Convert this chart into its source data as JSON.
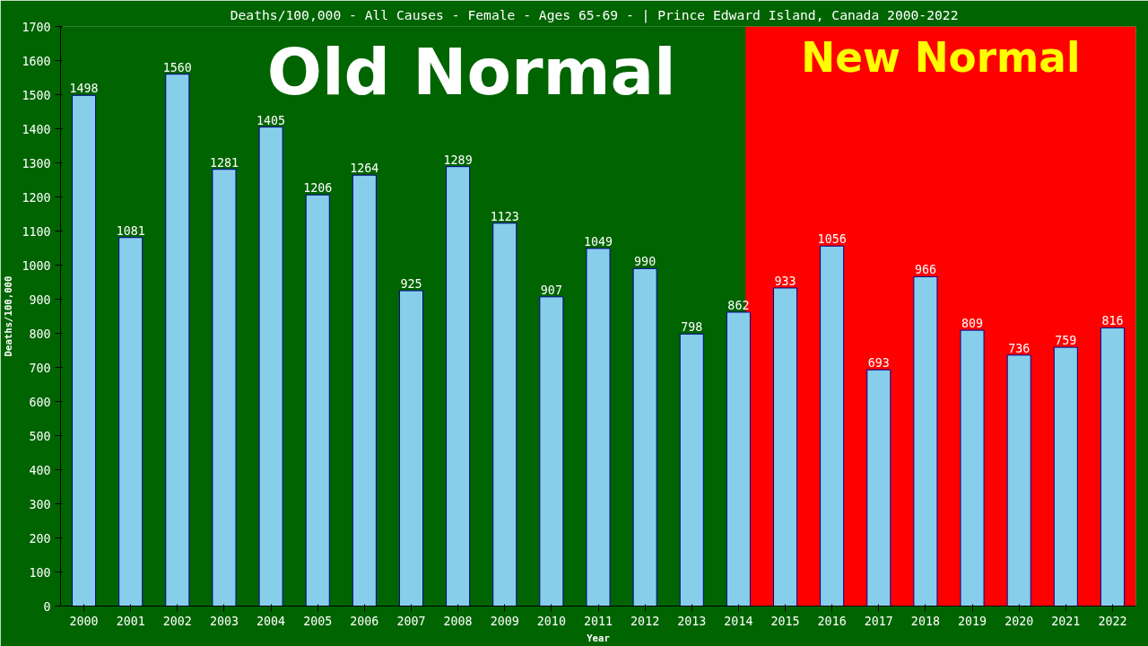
{
  "chart_data": {
    "type": "bar",
    "title": "Deaths/100,000 - All Causes - Female - Ages 65-69 -  | Prince Edward Island, Canada 2000-2022",
    "xlabel": "Year",
    "ylabel": "Deaths/100,000",
    "x": [
      2000,
      2001,
      2002,
      2003,
      2004,
      2005,
      2006,
      2007,
      2008,
      2009,
      2010,
      2011,
      2012,
      2013,
      2014,
      2015,
      2016,
      2017,
      2018,
      2019,
      2020,
      2021,
      2022
    ],
    "values": [
      1498,
      1081,
      1560,
      1281,
      1405,
      1206,
      1264,
      925,
      1289,
      1123,
      907,
      1049,
      990,
      798,
      862,
      933,
      1056,
      693,
      966,
      809,
      736,
      759,
      816
    ],
    "color": "#87ceeb",
    "xlim": [
      1999.5,
      2022.5
    ],
    "xticks": [
      2000,
      2001,
      2002,
      2003,
      2004,
      2005,
      2006,
      2007,
      2008,
      2009,
      2010,
      2011,
      2012,
      2013,
      2014,
      2015,
      2016,
      2017,
      2018,
      2019,
      2020,
      2021,
      2022
    ],
    "ylim": [
      0,
      1700
    ],
    "yticks": [
      0,
      100,
      200,
      300,
      400,
      500,
      600,
      700,
      800,
      900,
      1000,
      1100,
      1200,
      1300,
      1400,
      1500,
      1600,
      1700
    ],
    "bands": [
      {
        "axis": "x",
        "from": 1999.5,
        "to": 2014.15,
        "label": "Old Normal",
        "color": "#006400"
      },
      {
        "axis": "x",
        "from": 2014.15,
        "to": 2022.5,
        "label": "New Normal",
        "color": "#ff0000"
      }
    ],
    "data_labels": true,
    "grid": false
  }
}
